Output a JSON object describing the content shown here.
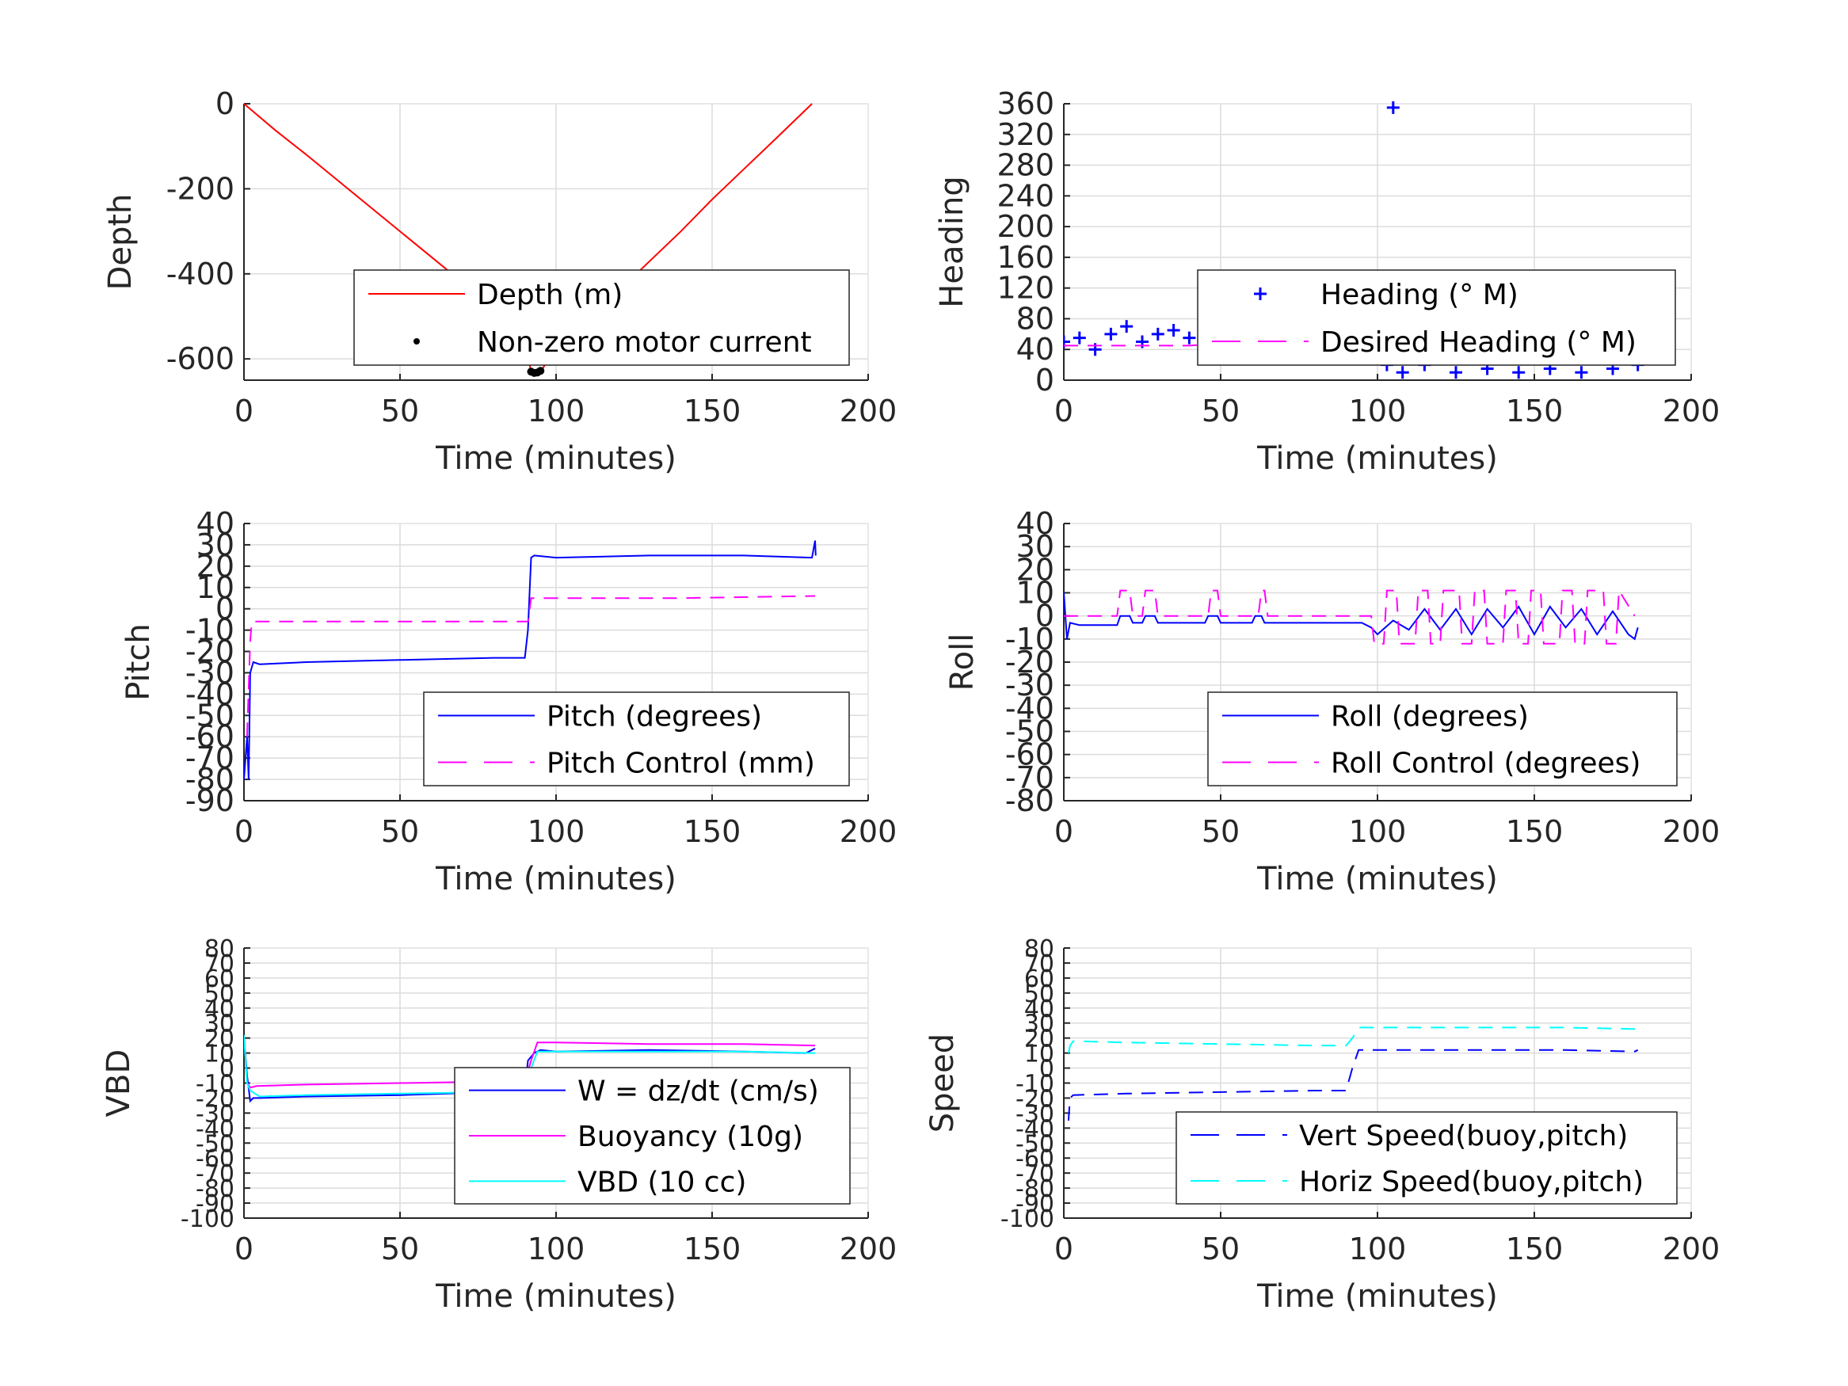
{
  "chart_data": [
    {
      "type": "line",
      "xlabel": "Time (minutes)",
      "ylabel": "Depth",
      "xlim": [
        0,
        200
      ],
      "ylim": [
        -650,
        0
      ],
      "xticks": [
        "0",
        "50",
        "100",
        "150",
        "200"
      ],
      "yticks": [
        "-600",
        "-400",
        "-200",
        "0"
      ],
      "grid": true,
      "legend_position": "bottom-right",
      "series": [
        {
          "name": "Depth (m)",
          "color": "#ff0000",
          "style": "solid",
          "x": [
            0,
            10,
            20,
            30,
            40,
            50,
            60,
            70,
            80,
            90,
            92,
            95,
            100,
            110,
            120,
            130,
            140,
            150,
            160,
            170,
            182
          ],
          "y": [
            0,
            -62,
            -120,
            -180,
            -240,
            -300,
            -360,
            -420,
            -480,
            -560,
            -630,
            -630,
            -575,
            -508,
            -440,
            -370,
            -300,
            -225,
            -155,
            -85,
            0
          ]
        },
        {
          "name": "Non-zero motor current",
          "color": "#000000",
          "style": "markers",
          "x": [
            92,
            93,
            94,
            95
          ],
          "y": [
            -630,
            -633,
            -632,
            -628
          ]
        }
      ]
    },
    {
      "type": "scatter",
      "xlabel": "Time (minutes)",
      "ylabel": "Heading",
      "xlim": [
        0,
        200
      ],
      "ylim": [
        0,
        360
      ],
      "xticks": [
        "0",
        "50",
        "100",
        "150",
        "200"
      ],
      "yticks": [
        "0",
        "40",
        "80",
        "120",
        "160",
        "200",
        "240",
        "280",
        "320",
        "360"
      ],
      "grid": true,
      "legend_position": "bottom-right",
      "series": [
        {
          "name": "Heading (° M)",
          "color": "#0000ff",
          "style": "plus-markers",
          "x": [
            0,
            5,
            10,
            15,
            20,
            25,
            30,
            35,
            40,
            45,
            50,
            55,
            60,
            65,
            70,
            75,
            80,
            85,
            90,
            95,
            100,
            103,
            105,
            108,
            110,
            115,
            120,
            125,
            130,
            135,
            140,
            145,
            150,
            155,
            160,
            165,
            170,
            175,
            180,
            183
          ],
          "y": [
            50,
            55,
            40,
            60,
            70,
            50,
            60,
            65,
            55,
            65,
            70,
            60,
            55,
            60,
            55,
            55,
            60,
            58,
            62,
            60,
            75,
            20,
            355,
            10,
            80,
            20,
            85,
            10,
            85,
            15,
            85,
            10,
            85,
            15,
            80,
            10,
            80,
            15,
            60,
            20
          ]
        },
        {
          "name": "Desired Heading (° M)",
          "color": "#ff00ff",
          "style": "dashed",
          "x": [
            0,
            20,
            40,
            60,
            80,
            100,
            120,
            140,
            160,
            183
          ],
          "y": [
            45,
            45,
            45,
            50,
            55,
            45,
            45,
            45,
            45,
            45
          ]
        }
      ]
    },
    {
      "type": "line",
      "xlabel": "Time (minutes)",
      "ylabel": "Pitch",
      "xlim": [
        0,
        200
      ],
      "ylim": [
        -90,
        40
      ],
      "xticks": [
        "0",
        "50",
        "100",
        "150",
        "200"
      ],
      "yticks": [
        "-90",
        "-80",
        "-70",
        "-60",
        "-50",
        "-40",
        "-30",
        "-20",
        "-10",
        "0",
        "10",
        "20",
        "30",
        "40"
      ],
      "grid": true,
      "legend_position": "bottom-right",
      "series": [
        {
          "name": "Pitch (degrees)",
          "color": "#0000ff",
          "style": "solid",
          "x": [
            0,
            1,
            1.5,
            2,
            3,
            5,
            20,
            50,
            80,
            90,
            91,
            92,
            93,
            100,
            130,
            160,
            182,
            183,
            183.2
          ],
          "y": [
            -80,
            -60,
            -80,
            -30,
            -25,
            -26,
            -25,
            -24,
            -23,
            -23,
            -10,
            24,
            25,
            24,
            25,
            25,
            24,
            32,
            25
          ]
        },
        {
          "name": "Pitch Control (mm)",
          "color": "#ff00ff",
          "style": "dashed",
          "x": [
            1,
            2,
            2.5,
            50,
            91,
            92,
            93,
            140,
            183
          ],
          "y": [
            -60,
            -15,
            -6,
            -6,
            -6,
            5,
            5,
            5,
            6
          ]
        }
      ]
    },
    {
      "type": "line",
      "xlabel": "Time (minutes)",
      "ylabel": "Roll",
      "xlim": [
        0,
        200
      ],
      "ylim": [
        -80,
        40
      ],
      "xticks": [
        "0",
        "50",
        "100",
        "150",
        "200"
      ],
      "yticks": [
        "-80",
        "-70",
        "-60",
        "-50",
        "-40",
        "-30",
        "-20",
        "-10",
        "0",
        "10",
        "20",
        "30",
        "40"
      ],
      "grid": true,
      "legend_position": "bottom-right",
      "series": [
        {
          "name": "Roll (degrees)",
          "color": "#0000ff",
          "style": "solid",
          "x": [
            0,
            1,
            2,
            5,
            17,
            18,
            21,
            22,
            25,
            26,
            29,
            30,
            45,
            46,
            49,
            50,
            60,
            61,
            63,
            64,
            90,
            95,
            98,
            100,
            105,
            110,
            115,
            120,
            125,
            130,
            135,
            140,
            145,
            150,
            155,
            160,
            165,
            170,
            175,
            180,
            182,
            183
          ],
          "y": [
            10,
            -10,
            -3,
            -4,
            -4,
            0,
            0,
            -3,
            -3,
            0,
            0,
            -3,
            -3,
            0,
            0,
            -3,
            -3,
            0,
            0,
            -3,
            -3,
            -3,
            -5,
            -8,
            -2,
            -6,
            3,
            -6,
            3,
            -8,
            3,
            -5,
            4,
            -8,
            4,
            -5,
            3,
            -8,
            2,
            -8,
            -10,
            -5
          ]
        },
        {
          "name": "Roll Control (degrees)",
          "color": "#ff00ff",
          "style": "dashed",
          "x": [
            0,
            17,
            18,
            21,
            22,
            25,
            26,
            29,
            30,
            46,
            47,
            49,
            50,
            62,
            63,
            64,
            65,
            90,
            95,
            98,
            99,
            102,
            103,
            106,
            107,
            112,
            113,
            116,
            117,
            120,
            121,
            126,
            127,
            130,
            131,
            134,
            135,
            140,
            141,
            144,
            145,
            148,
            149,
            152,
            153,
            158,
            159,
            162,
            163,
            166,
            167,
            172,
            173,
            176,
            177,
            182
          ],
          "y": [
            0,
            0,
            11,
            11,
            0,
            0,
            11,
            11,
            0,
            0,
            11,
            11,
            0,
            0,
            11,
            11,
            0,
            0,
            0,
            0,
            -12,
            -12,
            11,
            11,
            -12,
            -12,
            11,
            11,
            -12,
            -12,
            11,
            11,
            -12,
            -12,
            11,
            11,
            -12,
            -12,
            11,
            11,
            -12,
            -12,
            11,
            11,
            -12,
            -12,
            11,
            11,
            -12,
            -12,
            11,
            11,
            -12,
            -12,
            11,
            0
          ]
        }
      ]
    },
    {
      "type": "line",
      "xlabel": "Time (minutes)",
      "ylabel": "VBD",
      "xlim": [
        0,
        200
      ],
      "ylim": [
        -100,
        80
      ],
      "xticks": [
        "0",
        "50",
        "100",
        "150",
        "200"
      ],
      "yticks": [
        "-100",
        "-90",
        "-80",
        "-70",
        "-60",
        "-50",
        "-40",
        "-30",
        "-20",
        "-10",
        "0",
        "10",
        "20",
        "30",
        "40",
        "50",
        "60",
        "70",
        "80"
      ],
      "grid": true,
      "legend_position": "bottom-right",
      "series": [
        {
          "name": "W = dz/dt (cm/s)",
          "color": "#0000ff",
          "style": "solid",
          "x": [
            0,
            1,
            2,
            3,
            5,
            20,
            50,
            80,
            90,
            91,
            93,
            95,
            100,
            130,
            160,
            180,
            183
          ],
          "y": [
            20,
            -5,
            -22,
            -20,
            -20,
            -19,
            -18,
            -16,
            -15,
            5,
            10,
            12,
            11,
            12,
            11,
            10,
            13
          ]
        },
        {
          "name": "Buoyancy (10g)",
          "color": "#ff00ff",
          "style": "solid",
          "x": [
            1,
            2,
            4,
            20,
            50,
            80,
            90,
            92,
            94,
            100,
            130,
            160,
            183
          ],
          "y": [
            -10,
            -13,
            -12,
            -11,
            -10,
            -9,
            -9,
            5,
            17,
            17,
            16,
            16,
            15
          ]
        },
        {
          "name": "VBD (10 cc)",
          "color": "#00ffff",
          "style": "solid",
          "x": [
            0,
            1,
            2,
            5,
            20,
            50,
            80,
            90,
            92,
            94,
            100,
            130,
            160,
            183
          ],
          "y": [
            22,
            -10,
            -15,
            -19,
            -18,
            -17,
            -16,
            -15,
            0,
            11,
            11,
            11,
            11,
            10
          ]
        }
      ]
    },
    {
      "type": "line",
      "xlabel": "Time (minutes)",
      "ylabel": "Speed",
      "xlim": [
        0,
        200
      ],
      "ylim": [
        -100,
        80
      ],
      "xticks": [
        "0",
        "50",
        "100",
        "150",
        "200"
      ],
      "yticks": [
        "-100",
        "-90",
        "-80",
        "-70",
        "-60",
        "-50",
        "-40",
        "-30",
        "-20",
        "-10",
        "0",
        "10",
        "20",
        "30",
        "40",
        "50",
        "60",
        "70",
        "80"
      ],
      "grid": true,
      "legend_position": "bottom-right",
      "series": [
        {
          "name": "Vert Speed(buoy,pitch)",
          "color": "#0000ff",
          "style": "dashed",
          "x": [
            1.5,
            2,
            3,
            20,
            50,
            80,
            90,
            92,
            94,
            100,
            130,
            160,
            182,
            183
          ],
          "y": [
            -35,
            -20,
            -18,
            -17,
            -16,
            -15,
            -15,
            0,
            12,
            12,
            12,
            12,
            11,
            12
          ]
        },
        {
          "name": "Horiz Speed(buoy,pitch)",
          "color": "#00ffff",
          "style": "dashed",
          "x": [
            1.5,
            2,
            3,
            20,
            50,
            80,
            90,
            92,
            94,
            100,
            130,
            160,
            182,
            183
          ],
          "y": [
            10,
            15,
            18,
            17,
            16,
            15,
            15,
            20,
            27,
            27,
            27,
            27,
            26,
            25
          ]
        }
      ]
    }
  ]
}
